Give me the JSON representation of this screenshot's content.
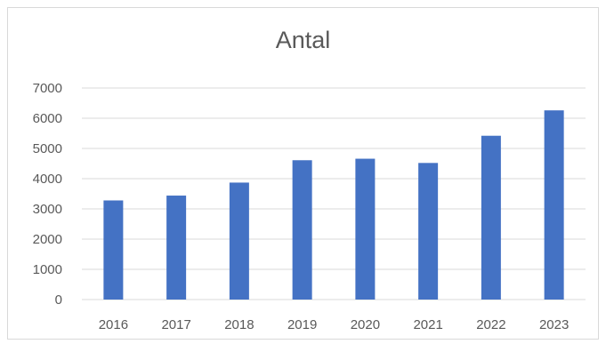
{
  "chart_data": {
    "type": "bar",
    "title": "Antal",
    "categories": [
      "2016",
      "2017",
      "2018",
      "2019",
      "2020",
      "2021",
      "2022",
      "2023"
    ],
    "series": [
      {
        "values": [
          3280,
          3440,
          3870,
          4610,
          4660,
          4520,
          5420,
          6260
        ]
      }
    ],
    "yticks": [
      "0",
      "1000",
      "2000",
      "3000",
      "4000",
      "5000",
      "6000",
      "7000"
    ],
    "ylim": [
      0,
      7000
    ],
    "grid": true,
    "legend": "none",
    "bar_color": "#4472c4",
    "grid_color": "#d9d9d9"
  }
}
